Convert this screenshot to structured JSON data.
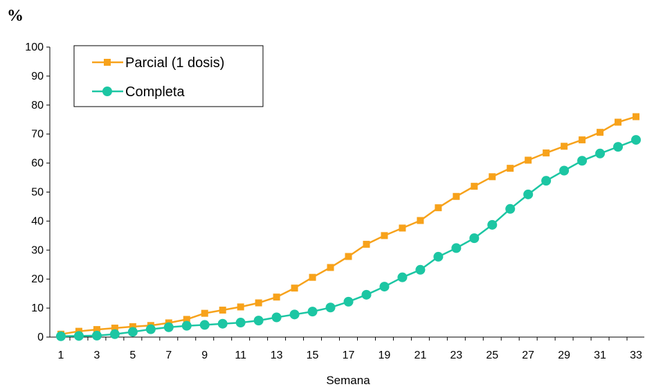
{
  "chart_data": {
    "type": "line",
    "unit_label": "%",
    "title": "",
    "xlabel": "Semana",
    "ylabel": "",
    "xlim": [
      1,
      33
    ],
    "ylim": [
      0,
      100
    ],
    "yticks": [
      0,
      10,
      20,
      30,
      40,
      50,
      60,
      70,
      80,
      90,
      100
    ],
    "xticks": [
      1,
      3,
      5,
      7,
      9,
      11,
      13,
      15,
      17,
      19,
      21,
      23,
      25,
      27,
      29,
      31,
      33
    ],
    "grid": false,
    "legend_position": "top-left",
    "x": [
      1,
      2,
      3,
      4,
      5,
      6,
      7,
      8,
      9,
      10,
      11,
      12,
      13,
      14,
      15,
      16,
      17,
      18,
      19,
      20,
      21,
      22,
      23,
      24,
      25,
      26,
      27,
      28,
      29,
      30,
      31,
      32,
      33
    ],
    "series": [
      {
        "name": "Parcial (1 dosis)",
        "color": "#f7a21b",
        "marker": "square",
        "values": [
          1,
          2,
          2.6,
          3.1,
          3.6,
          4,
          4.9,
          6.1,
          8.2,
          9.3,
          10.4,
          11.8,
          13.8,
          16.9,
          20.6,
          24,
          27.8,
          32,
          35,
          37.6,
          40.2,
          44.6,
          48.5,
          52,
          55.3,
          58.2,
          61,
          63.5,
          65.8,
          68,
          70.6,
          74.1,
          76
        ]
      },
      {
        "name": "Completa",
        "color": "#1cc6a3",
        "marker": "circle",
        "values": [
          0.3,
          0.4,
          0.5,
          1,
          1.8,
          2.7,
          3.4,
          3.9,
          4.2,
          4.6,
          5,
          5.7,
          6.8,
          7.8,
          8.8,
          10.2,
          12.2,
          14.6,
          17.4,
          20.6,
          23.2,
          27.7,
          30.7,
          34.1,
          38.7,
          44.2,
          49.2,
          53.9,
          57.4,
          60.8,
          63.3,
          65.6,
          68
        ]
      }
    ]
  }
}
